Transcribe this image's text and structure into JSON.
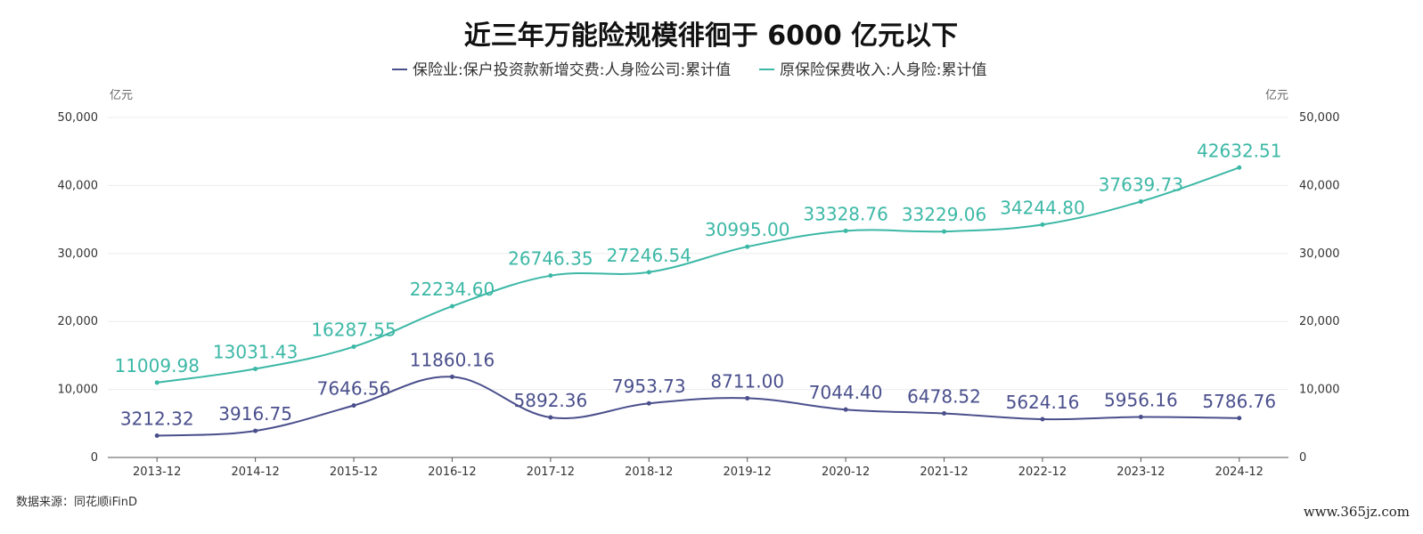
{
  "chart_data": {
    "type": "line",
    "title": "近三年万能险规模徘徊于 6000 亿元以下",
    "categories": [
      "2013-12",
      "2014-12",
      "2015-12",
      "2016-12",
      "2017-12",
      "2018-12",
      "2019-12",
      "2020-12",
      "2021-12",
      "2022-12",
      "2023-12",
      "2024-12"
    ],
    "series": [
      {
        "name": "保险业:保户投资款新增交费:人身险公司:累计值",
        "color": "#4a4f8c",
        "values": [
          3212.32,
          3916.75,
          7646.56,
          11860.16,
          5892.36,
          7953.73,
          8711.0,
          7044.4,
          6478.52,
          5624.16,
          5956.16,
          5786.76
        ],
        "labels": [
          "3212.32",
          "3916.75",
          "7646.56",
          "11860.16",
          "5892.36",
          "7953.73",
          "8711.00",
          "7044.40",
          "6478.52",
          "5624.16",
          "5956.16",
          "5786.76"
        ]
      },
      {
        "name": "原保险保费收入:人身险:累计值",
        "color": "#3cb8a6",
        "values": [
          11009.98,
          13031.43,
          16287.55,
          22234.6,
          26746.35,
          27246.54,
          30995.0,
          33328.76,
          33229.06,
          34244.8,
          37639.73,
          42632.51
        ],
        "labels": [
          "11009.98",
          "13031.43",
          "16287.55",
          "22234.60",
          "26746.35",
          "27246.54",
          "30995.00",
          "33328.76",
          "33229.06",
          "34244.80",
          "37639.73",
          "42632.51"
        ]
      }
    ],
    "y_unit_left": "亿元",
    "y_unit_right": "亿元",
    "ylim": [
      0,
      50000
    ],
    "yticks": [
      0,
      10000,
      20000,
      30000,
      40000,
      50000
    ],
    "ytick_labels": [
      "0",
      "10,000",
      "20,000",
      "30,000",
      "40,000",
      "50,000"
    ],
    "grid": true,
    "legend_position": "top-center"
  },
  "footer": {
    "source": "数据来源：同花顺iFinD",
    "watermark": "www.365jz.com"
  }
}
